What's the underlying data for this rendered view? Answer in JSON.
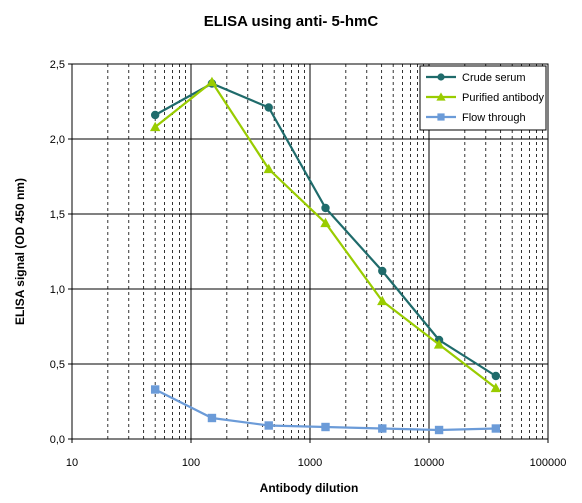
{
  "chart_data": {
    "type": "line",
    "title": "ELISA using anti- 5-hmC",
    "xlabel": "Antibody dilution",
    "ylabel": "ELISA signal (OD 450 nm)",
    "x_scale": "log",
    "xlim": [
      10,
      100000
    ],
    "ylim": [
      0,
      2.5
    ],
    "x_ticks": [
      10,
      100,
      1000,
      10000,
      100000
    ],
    "x_tick_labels": [
      "10",
      "100",
      "1000",
      "10000",
      "100000"
    ],
    "y_ticks": [
      0,
      0.5,
      1.0,
      1.5,
      2.0,
      2.5
    ],
    "y_tick_labels": [
      "0,0",
      "0,5",
      "1,0",
      "1,5",
      "2,0",
      "2,5"
    ],
    "grid": {
      "major": true,
      "minor_x": true
    },
    "legend_position": "top-right",
    "x": [
      50,
      150,
      450,
      1350,
      4050,
      12150,
      36450
    ],
    "series": [
      {
        "name": "Crude serum",
        "color": "#1f6b6b",
        "marker": "diamond",
        "values": [
          2.16,
          2.37,
          2.21,
          1.54,
          1.12,
          0.66,
          0.42
        ]
      },
      {
        "name": "Purified antibody",
        "color": "#99cc00",
        "marker": "triangle",
        "values": [
          2.08,
          2.38,
          1.8,
          1.44,
          0.92,
          0.63,
          0.34
        ]
      },
      {
        "name": "Flow  through",
        "color": "#6b9bd8",
        "marker": "square",
        "values": [
          0.33,
          0.14,
          0.09,
          0.08,
          0.07,
          0.06,
          0.07
        ]
      }
    ]
  }
}
